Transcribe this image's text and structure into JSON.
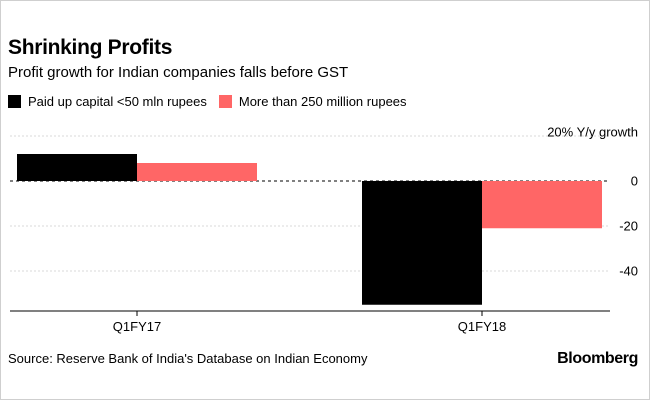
{
  "chart_data": {
    "type": "bar",
    "title": "Shrinking Profits",
    "subtitle": "Profit growth for Indian companies falls before GST",
    "categories": [
      "Q1FY17",
      "Q1FY18"
    ],
    "series": [
      {
        "name": "Paid up capital <50 mln rupees",
        "color": "#000000",
        "values": [
          12,
          -55
        ]
      },
      {
        "name": "More than 250 million rupees",
        "color": "#ff6666",
        "values": [
          8,
          -21
        ]
      }
    ],
    "ylim": [
      -55,
      20
    ],
    "yticks": [
      20,
      0,
      -20,
      -40
    ],
    "ytick_labels": [
      "20% Y/y growth",
      "0",
      "-20",
      "-40"
    ],
    "ylabel": "Y/y growth",
    "xlabel": "",
    "source": "Source: Reserve Bank of India's Database on Indian Economy",
    "brand": "Bloomberg"
  }
}
